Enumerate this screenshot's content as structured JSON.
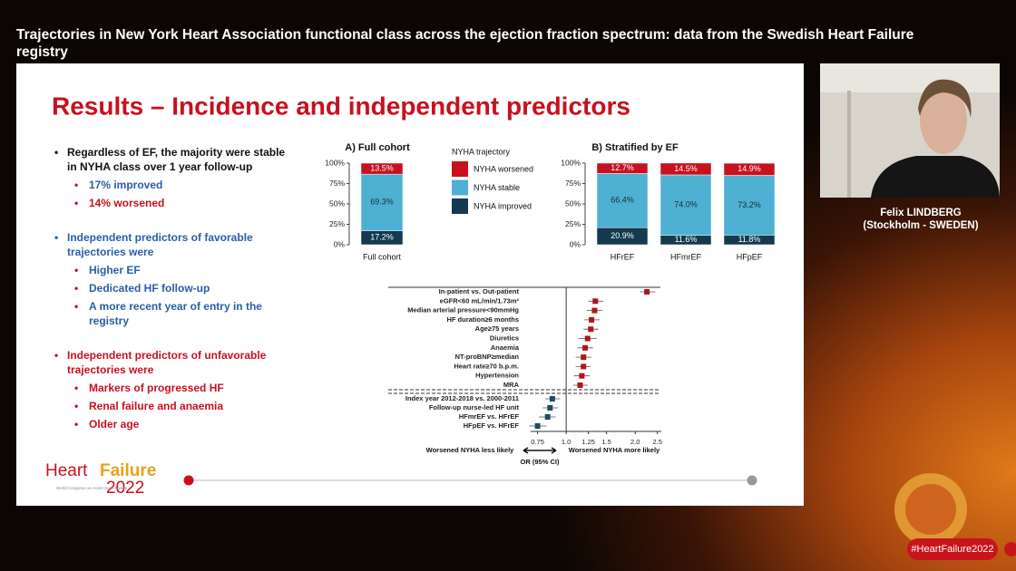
{
  "header": {
    "title": "Trajectories in New York Heart Association functional class across the ejection fraction spectrum: data from the Swedish Heart Failure registry"
  },
  "slide": {
    "title": "Results – Incidence and independent predictors",
    "bullets": [
      {
        "text": "Regardless of EF, the majority were stable in NYHA class over 1 year follow-up",
        "sub": [
          "17% improved",
          "14% worsened"
        ]
      },
      {
        "text": "Independent predictors of favorable trajectories were",
        "sub": [
          "Higher EF",
          "Dedicated HF follow-up",
          "A more recent year of entry in the registry"
        ]
      },
      {
        "text": "Independent predictors of unfavorable trajectories were",
        "sub": [
          "Markers of progressed HF",
          "Renal failure and anaemia",
          "Older age"
        ]
      }
    ],
    "logo": {
      "word1": "Heart",
      "word2": "Failure",
      "year": "2022",
      "tagline": "World Congress on Acute Heart Failure"
    }
  },
  "chart_data": [
    {
      "type": "stacked-bar",
      "title": "A) Full cohort",
      "legend_title": "NYHA trajectory",
      "categories": [
        "Full cohort"
      ],
      "series": [
        {
          "name": "NYHA improved",
          "color": "#153a4f",
          "values": [
            17.2
          ],
          "value_labels": [
            "17.2%"
          ]
        },
        {
          "name": "NYHA stable",
          "color": "#4eb0d2",
          "values": [
            69.3
          ],
          "value_labels": [
            "69.3%"
          ]
        },
        {
          "name": "NYHA worsened",
          "color": "#c8101e",
          "values": [
            13.5
          ],
          "value_labels": [
            "13.5%"
          ]
        }
      ],
      "ylim": [
        0,
        100
      ],
      "yticks": [
        {
          "value": 0,
          "label": "0%"
        },
        {
          "value": 25,
          "label": "25%"
        },
        {
          "value": 50,
          "label": "50%"
        },
        {
          "value": 75,
          "label": "75%"
        },
        {
          "value": 100,
          "label": "100%"
        }
      ]
    },
    {
      "type": "stacked-bar",
      "title": "B) Stratified by EF",
      "categories": [
        "HFrEF",
        "HFmrEF",
        "HFpEF"
      ],
      "series": [
        {
          "color": "#153a4f",
          "values": [
            20.9,
            11.6,
            11.8
          ],
          "value_labels": [
            "20.9%",
            "11.6%",
            "11.8%"
          ]
        },
        {
          "color": "#4eb0d2",
          "values": [
            66.4,
            74.0,
            73.2
          ],
          "value_labels": [
            "66.4%",
            "74.0%",
            "73.2%"
          ]
        },
        {
          "color": "#c8101e",
          "values": [
            12.7,
            14.5,
            14.9
          ],
          "value_labels": [
            "12.7%",
            "14.5%",
            "14.9%"
          ]
        }
      ],
      "ylim": [
        0,
        100
      ],
      "yticks": [
        {
          "value": 0,
          "label": "0%"
        },
        {
          "value": 25,
          "label": "25%"
        },
        {
          "value": 50,
          "label": "50%"
        },
        {
          "value": 75,
          "label": "75%"
        },
        {
          "value": 100,
          "label": "100%"
        }
      ]
    },
    {
      "type": "forest",
      "log_scale": true,
      "xlabel": "OR (95% CI)",
      "left_note": "Worsened NYHA less likely",
      "right_note": "Worsened NYHA more likely",
      "xlim": [
        0.7,
        2.6
      ],
      "xticks": [
        0.75,
        {
          "value": 1,
          "label": "1.0"
        },
        1.25,
        1.5,
        {
          "value": 2,
          "label": "2.0"
        },
        2.5
      ],
      "groups": [
        {
          "color": "#b0141e",
          "rows": [
            {
              "label": "In-patient vs. Out-patient",
              "or": 2.25,
              "ci": [
                2.1,
                2.45
              ]
            },
            {
              "label": "eGFR<60 mL/min/1.73m²",
              "or": 1.34,
              "ci": [
                1.25,
                1.45
              ]
            },
            {
              "label": "Median arterial pressure<90mmHg",
              "or": 1.33,
              "ci": [
                1.23,
                1.44
              ]
            },
            {
              "label": "HF duration≥6 months",
              "or": 1.29,
              "ci": [
                1.2,
                1.4
              ]
            },
            {
              "label": "Age≥75 years",
              "or": 1.28,
              "ci": [
                1.19,
                1.38
              ]
            },
            {
              "label": "Diuretics",
              "or": 1.24,
              "ci": [
                1.13,
                1.36
              ]
            },
            {
              "label": "Anaemia",
              "or": 1.21,
              "ci": [
                1.12,
                1.31
              ]
            },
            {
              "label": "NT-proBNP≥median",
              "or": 1.19,
              "ci": [
                1.1,
                1.29
              ]
            },
            {
              "label": "Heart rate≥70 b.p.m.",
              "or": 1.19,
              "ci": [
                1.1,
                1.28
              ]
            },
            {
              "label": "Hypertension",
              "or": 1.17,
              "ci": [
                1.08,
                1.27
              ]
            },
            {
              "label": "MRA",
              "or": 1.15,
              "ci": [
                1.07,
                1.24
              ]
            }
          ]
        },
        {
          "color": "#1d4e60",
          "rows": [
            {
              "label": "Index year 2012-2018 vs. 2000-2011",
              "or": 0.87,
              "ci": [
                0.81,
                0.94
              ]
            },
            {
              "label": "Follow-up nurse-led HF unit",
              "or": 0.85,
              "ci": [
                0.79,
                0.92
              ]
            },
            {
              "label": "HFmrEF vs. HFrEF",
              "or": 0.83,
              "ci": [
                0.76,
                0.9
              ]
            },
            {
              "label": "HFpEF vs. HFrEF",
              "or": 0.75,
              "ci": [
                0.69,
                0.82
              ]
            }
          ]
        }
      ]
    }
  ],
  "speaker": {
    "name": "Felix LINDBERG",
    "affiliation": "(Stockholm - SWEDEN)"
  },
  "hashtag": "#HeartFailure2022"
}
